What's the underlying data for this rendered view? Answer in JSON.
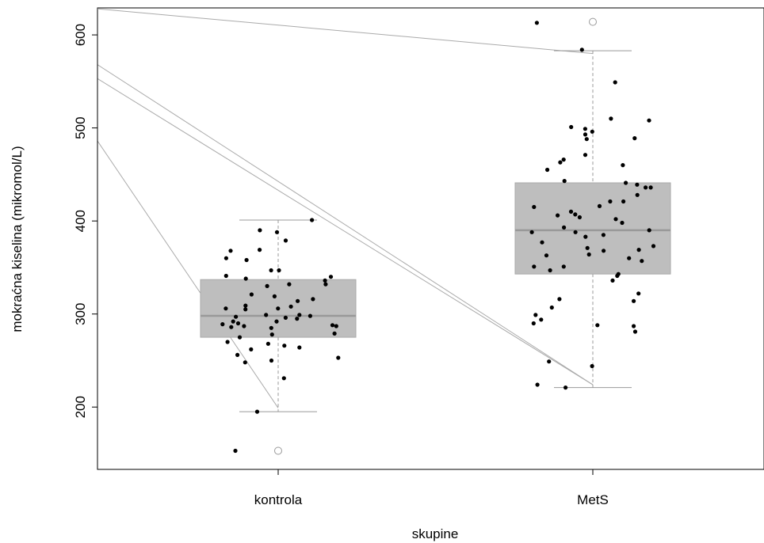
{
  "chart_data": {
    "type": "box",
    "title": "",
    "xlabel": "skupine",
    "ylabel": "mokraćna kiselina (mikromol/L)",
    "ylim": [
      133,
      629
    ],
    "yticks": [
      200,
      300,
      400,
      500,
      600
    ],
    "ytick_labels": [
      "200",
      "300",
      "400",
      "500",
      "600"
    ],
    "grid": false,
    "categories": [
      "kontrola",
      "MetS"
    ],
    "boxes": [
      {
        "name": "kontrola",
        "whisker_low": 195,
        "q1": 275,
        "median": 298,
        "q3": 337,
        "whisker_high": 401,
        "outliers": [
          153
        ]
      },
      {
        "name": "MetS",
        "whisker_low": 221,
        "q1": 343,
        "median": 390,
        "q3": 441,
        "whisker_high": 583,
        "outliers": [
          614
        ]
      }
    ],
    "points": [
      {
        "group": "kontrola",
        "values": [
          388,
          379,
          368,
          358,
          347,
          347,
          341,
          336,
          332,
          330,
          321,
          316,
          314,
          306,
          306,
          305,
          299,
          297,
          296,
          292,
          290,
          289,
          288,
          287,
          286,
          285,
          279,
          275,
          268,
          266,
          264,
          262,
          256,
          253,
          250,
          248,
          231,
          195,
          153,
          401,
          390,
          369,
          360,
          340,
          338,
          332,
          319,
          309,
          308,
          299,
          298,
          295,
          292,
          287,
          278,
          270
        ]
      },
      {
        "group": "MetS",
        "values": [
          613,
          584,
          549,
          510,
          508,
          501,
          499,
          496,
          493,
          489,
          488,
          471,
          466,
          463,
          460,
          455,
          443,
          441,
          439,
          436,
          436,
          428,
          421,
          421,
          416,
          415,
          410,
          407,
          406,
          404,
          402,
          398,
          393,
          390,
          388,
          388,
          385,
          383,
          377,
          373,
          371,
          369,
          368,
          364,
          363,
          360,
          357,
          351,
          351,
          347,
          343,
          341,
          336,
          322,
          316,
          314,
          307,
          299,
          294,
          290,
          288,
          287,
          281,
          249,
          244,
          224,
          221
        ]
      }
    ],
    "overlay_lines": [
      {
        "from": 628,
        "to": 580
      },
      {
        "from": 568,
        "to": 224
      },
      {
        "from": 553,
        "to": 224
      },
      {
        "from": 486,
        "to": 199
      }
    ],
    "colors": {
      "box_fill": "#bebebe",
      "box_border": "#a9a9a9",
      "median": "#999999",
      "whisker": "#999999",
      "overlay": "#aaaaaa",
      "point": "#000000",
      "outlier": "#999999"
    }
  }
}
